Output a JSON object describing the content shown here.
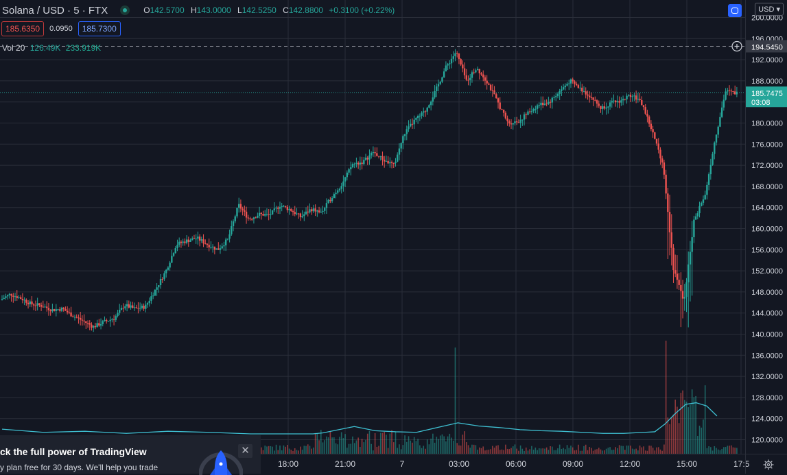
{
  "header": {
    "symbol": "Solana / USD · 5 · FTX",
    "ohlc": {
      "o_label": "O",
      "o": "142.5700",
      "h_label": "H",
      "h": "143.0000",
      "l_label": "L",
      "l": "142.5250",
      "c_label": "C",
      "c": "142.8800",
      "change": "+0.3100 (+0.22%)"
    },
    "sell_price": "185.6350",
    "spread": "0.0950",
    "buy_price": "185.7300",
    "currency": "USD"
  },
  "volume_legend": {
    "label": "Vol 20",
    "value": "126.49K",
    "ma": "233.919K"
  },
  "price_axis": {
    "ticks": [
      "200.0000",
      "196.0000",
      "192.0000",
      "188.0000",
      "184.0000",
      "180.0000",
      "176.0000",
      "172.0000",
      "168.0000",
      "164.0000",
      "160.0000",
      "156.0000",
      "152.0000",
      "148.0000",
      "144.0000",
      "140.0000",
      "136.0000",
      "132.0000",
      "128.0000",
      "124.0000",
      "120.0000"
    ],
    "crosshair_price": "194.5450",
    "last_price": "185.7475",
    "countdown": "03:08"
  },
  "time_axis": {
    "ticks": [
      "18:00",
      "21:00",
      "7",
      "03:00",
      "06:00",
      "09:00",
      "12:00",
      "15:00",
      "17:5"
    ]
  },
  "popup": {
    "title": "ck the full power of TradingView",
    "subtitle": "y plan free for 30 days. We'll help you trade",
    "close": "✕"
  },
  "colors": {
    "up": "#26a69a",
    "down": "#ef5350",
    "background": "#131722",
    "grid": "#2a2e39",
    "volume_ma": "#3fc1d3"
  },
  "chart_data": {
    "type": "candlestick",
    "interval": "5",
    "last_price": 185.7475,
    "crosshair_price": 194.545,
    "ylim": [
      118,
      200.5
    ],
    "price_path": [
      [
        -0.5,
        146.5
      ],
      [
        0.5,
        147.6
      ],
      [
        1.5,
        146.8
      ],
      [
        2.5,
        145.7
      ],
      [
        3.5,
        145.4
      ],
      [
        4.5,
        144.6
      ],
      [
        5.5,
        144.8
      ],
      [
        6.5,
        143.5
      ],
      [
        7.5,
        142.5
      ],
      [
        8.5,
        141.4
      ],
      [
        9.5,
        142.3
      ],
      [
        10.5,
        143
      ],
      [
        11.5,
        145.5
      ],
      [
        12.5,
        144.8
      ],
      [
        13.5,
        145.2
      ],
      [
        14.5,
        148.5
      ],
      [
        15.5,
        152
      ],
      [
        16.5,
        157
      ],
      [
        17.5,
        157.7
      ],
      [
        18.5,
        158.2
      ],
      [
        19.5,
        157
      ],
      [
        20.5,
        156
      ],
      [
        21.5,
        158
      ],
      [
        22.5,
        164.5
      ],
      [
        23.5,
        161.8
      ],
      [
        24.5,
        162.7
      ],
      [
        25.5,
        162.6
      ],
      [
        26.5,
        164.4
      ],
      [
        27.5,
        163.6
      ],
      [
        28.5,
        162.2
      ],
      [
        29.5,
        163.7
      ],
      [
        30.5,
        163
      ],
      [
        31.5,
        166
      ],
      [
        32.5,
        168.5
      ],
      [
        33.5,
        172.2
      ],
      [
        34.5,
        172.6
      ],
      [
        35.5,
        174.5
      ],
      [
        36.5,
        173
      ],
      [
        37.5,
        172
      ],
      [
        38.5,
        178
      ],
      [
        39.5,
        180.5
      ],
      [
        40.5,
        182.2
      ],
      [
        41.5,
        186
      ],
      [
        42.5,
        190.5
      ],
      [
        43.5,
        193.5
      ],
      [
        44.5,
        188
      ],
      [
        45.5,
        190.5
      ],
      [
        46.5,
        187.8
      ],
      [
        47.5,
        184
      ],
      [
        48.5,
        180
      ],
      [
        49.5,
        180.3
      ],
      [
        50.5,
        182
      ],
      [
        51.5,
        183.5
      ],
      [
        52.5,
        184
      ],
      [
        53.5,
        186
      ],
      [
        54.5,
        188
      ],
      [
        55.5,
        186.5
      ],
      [
        56.5,
        185
      ],
      [
        57.5,
        182.8
      ],
      [
        58.5,
        183.8
      ],
      [
        59.5,
        184.3
      ],
      [
        60.5,
        185.5
      ],
      [
        61.5,
        183.5
      ],
      [
        62.5,
        178
      ],
      [
        63.5,
        172
      ],
      [
        64.5,
        152
      ],
      [
        65.5,
        146.4
      ],
      [
        66.5,
        162
      ],
      [
        67.5,
        166
      ],
      [
        68.5,
        177
      ],
      [
        69.5,
        186
      ],
      [
        70.5,
        185.7
      ]
    ],
    "time_ticks": [
      "18:00",
      "21:00",
      "7",
      "03:00",
      "06:00",
      "09:00",
      "12:00",
      "15:00",
      "17:5"
    ],
    "volume_ma_20": [
      [
        -0.5,
        122
      ],
      [
        3.5,
        121.4
      ],
      [
        7.5,
        121.6
      ],
      [
        11.5,
        121.2
      ],
      [
        15.5,
        121.6
      ],
      [
        19.5,
        121.4
      ],
      [
        23.5,
        121.1
      ],
      [
        27.5,
        121.1
      ],
      [
        29.5,
        121.1
      ],
      [
        30.5,
        121.3
      ],
      [
        31.5,
        121.7
      ],
      [
        33.5,
        122.5
      ],
      [
        35.5,
        121.7
      ],
      [
        37.5,
        121.5
      ],
      [
        39.5,
        121.4
      ],
      [
        41.5,
        122.3
      ],
      [
        43.5,
        123.2
      ],
      [
        45.5,
        122.6
      ],
      [
        47.5,
        122.3
      ],
      [
        49.5,
        121.9
      ],
      [
        51.5,
        121.7
      ],
      [
        53.5,
        121.6
      ],
      [
        55.5,
        121.4
      ],
      [
        57.5,
        121.2
      ],
      [
        59.5,
        121.2
      ],
      [
        61.5,
        121.4
      ],
      [
        62.5,
        121.5
      ],
      [
        63.5,
        123
      ],
      [
        64.5,
        125
      ],
      [
        65.5,
        126.7
      ],
      [
        66.5,
        127
      ],
      [
        67.5,
        126.4
      ],
      [
        68.5,
        124.5
      ]
    ]
  }
}
